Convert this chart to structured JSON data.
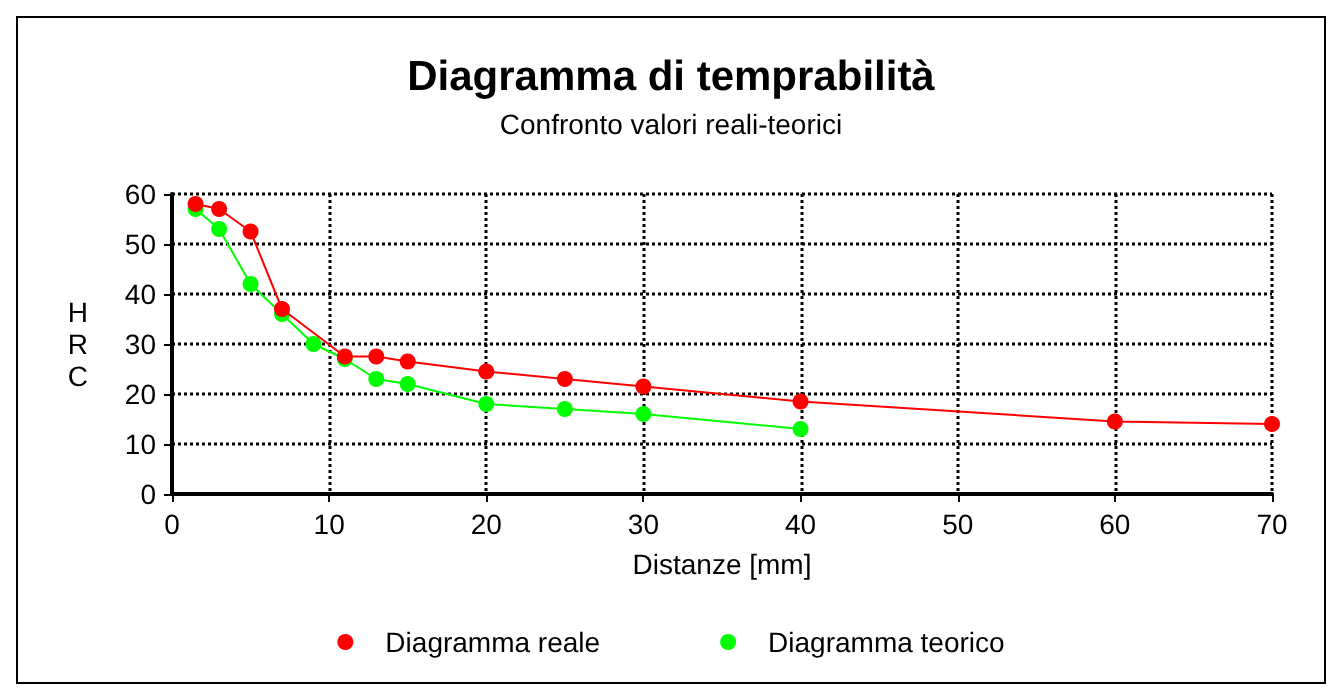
{
  "chart_data": {
    "type": "line",
    "title": "Diagramma di temprabilità",
    "subtitle": "Confronto valori reali-teorici",
    "xlabel": "Distanze [mm]",
    "ylabel": "HRC",
    "series": [
      {
        "name": "Diagramma reale",
        "color": "#ff0000",
        "x": [
          1.5,
          3,
          5,
          7,
          9,
          11,
          13,
          15,
          20,
          25,
          30,
          40,
          60,
          70
        ],
        "values": [
          58,
          57,
          52.5,
          37,
          null,
          27.5,
          27.5,
          26.5,
          24.5,
          23,
          21.5,
          18.5,
          14.5,
          14
        ]
      },
      {
        "name": "Diagramma teorico",
        "color": "#00ff00",
        "x": [
          1.5,
          3,
          5,
          7,
          9,
          11,
          13,
          15,
          20,
          25,
          30,
          40
        ],
        "values": [
          57,
          53,
          42,
          36,
          30,
          27,
          23,
          22,
          18,
          17,
          16,
          13
        ]
      }
    ],
    "xlim": [
      0,
      70
    ],
    "xticks": [
      0,
      10,
      20,
      30,
      40,
      50,
      60,
      70
    ],
    "ylim": [
      0,
      60
    ],
    "yticks": [
      0,
      10,
      20,
      30,
      40,
      50,
      60
    ],
    "grid": true,
    "legend": "bottom",
    "marker": "circle",
    "line_style": "solid"
  }
}
